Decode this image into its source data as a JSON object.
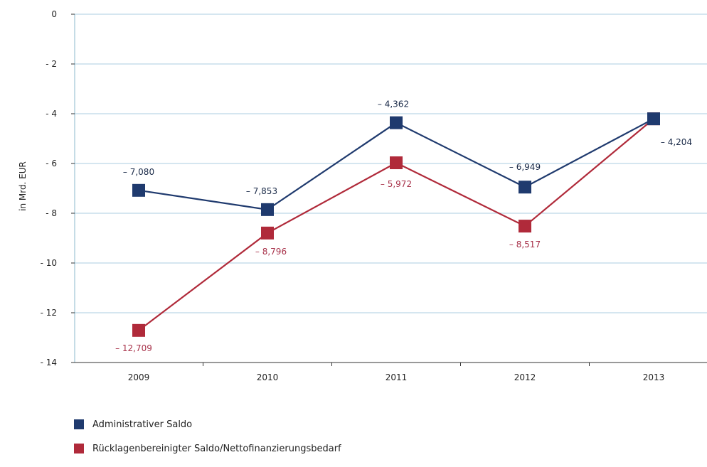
{
  "chart_data": {
    "type": "line",
    "ylabel": "in Mrd. EUR",
    "categories": [
      "2009",
      "2010",
      "2011",
      "2012",
      "2013"
    ],
    "ylim": [
      -14,
      0
    ],
    "y_ticks": [
      0,
      -2,
      -4,
      -6,
      -8,
      -10,
      -12,
      -14
    ],
    "y_tick_labels": [
      "0",
      "- 2",
      "- 4",
      "- 6",
      "- 8",
      "- 10",
      "- 12",
      "- 14"
    ],
    "grid": true,
    "legend_position": "bottom-left",
    "series": [
      {
        "name": "Administrativer Saldo",
        "color": "#1f3a6e",
        "values": [
          -7.08,
          -7.853,
          -4.362,
          -6.949,
          -4.204
        ],
        "labels": [
          "– 7,080",
          "– 7,853",
          "– 4,362",
          "– 6,949",
          "– 4,204"
        ]
      },
      {
        "name": "Rücklagenbereinigter Saldo/Nettofinanzierungsbedarf",
        "color": "#b02a3a",
        "values": [
          -12.709,
          -8.796,
          -5.972,
          -8.517,
          -4.204
        ],
        "labels": [
          "– 12,709",
          "– 8,796",
          "– 5,972",
          "– 8,517",
          ""
        ]
      }
    ]
  }
}
